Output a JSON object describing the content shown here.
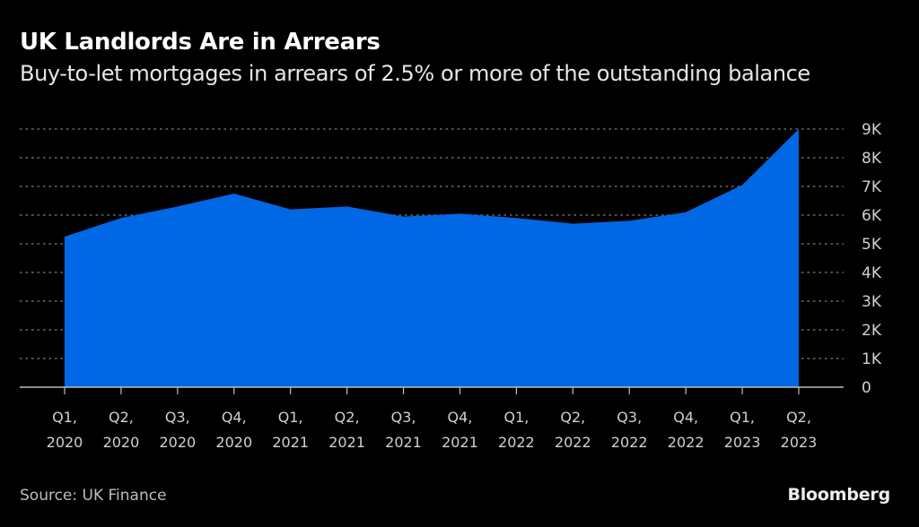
{
  "header": {
    "title": "UK Landlords Are in Arrears",
    "subtitle": "Buy-to-let mortgages in arrears of 2.5% or more of the outstanding balance"
  },
  "footer": {
    "source": "Source: UK Finance",
    "brand": "Bloomberg"
  },
  "colors": {
    "background": "#000000",
    "area_fill": "#0068E5",
    "gridline": "#6b6b6b",
    "axis": "#bdbdbd",
    "text": "#d0d0d0"
  },
  "chart_data": {
    "type": "area",
    "title": "UK Landlords Are in Arrears",
    "subtitle": "Buy-to-let mortgages in arrears of 2.5% or more of the outstanding balance",
    "xlabel": "",
    "ylabel": "",
    "categories": [
      [
        "Q1,",
        "2020"
      ],
      [
        "Q2,",
        "2020"
      ],
      [
        "Q3,",
        "2020"
      ],
      [
        "Q4,",
        "2020"
      ],
      [
        "Q1,",
        "2021"
      ],
      [
        "Q2,",
        "2021"
      ],
      [
        "Q3,",
        "2021"
      ],
      [
        "Q4,",
        "2021"
      ],
      [
        "Q1,",
        "2022"
      ],
      [
        "Q2,",
        "2022"
      ],
      [
        "Q3,",
        "2022"
      ],
      [
        "Q4,",
        "2022"
      ],
      [
        "Q1,",
        "2023"
      ],
      [
        "Q2,",
        "2023"
      ]
    ],
    "series": [
      {
        "name": "Buy-to-let mortgages in arrears",
        "values": [
          5250,
          5900,
          6300,
          6750,
          6200,
          6300,
          5950,
          6050,
          5900,
          5700,
          5800,
          6100,
          7050,
          9000
        ]
      }
    ],
    "ylim": [
      0,
      9000
    ],
    "yticks": [
      {
        "value": 0,
        "label": "0"
      },
      {
        "value": 1000,
        "label": "1K"
      },
      {
        "value": 2000,
        "label": "2K"
      },
      {
        "value": 3000,
        "label": "3K"
      },
      {
        "value": 4000,
        "label": "4K"
      },
      {
        "value": 5000,
        "label": "5K"
      },
      {
        "value": 6000,
        "label": "6K"
      },
      {
        "value": 7000,
        "label": "7K"
      },
      {
        "value": 8000,
        "label": "8K"
      },
      {
        "value": 9000,
        "label": "9K"
      }
    ],
    "grid": true,
    "grid_style": "dotted",
    "y_axis_position": "right",
    "legend": "none",
    "source": "UK Finance"
  }
}
